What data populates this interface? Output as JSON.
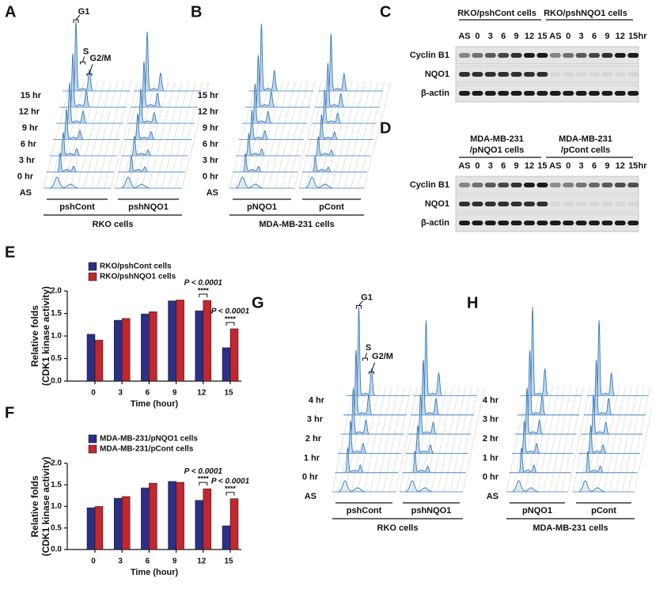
{
  "chart_data": [
    {
      "type": "bar",
      "panel": "E",
      "ylabel": [
        "Relative folds",
        "(CDK1 kinase activity)"
      ],
      "xlabel": "Time (hour)",
      "categories": [
        "0",
        "3",
        "6",
        "9",
        "12",
        "15"
      ],
      "series": [
        {
          "name": "RKO/pshCont cells",
          "color": "#2b2f86",
          "values": [
            1.04,
            1.35,
            1.49,
            1.78,
            1.56,
            0.74
          ]
        },
        {
          "name": "RKO/pshNQO1 cells",
          "color": "#c1272d",
          "values": [
            0.91,
            1.39,
            1.54,
            1.8,
            1.79,
            1.16
          ]
        }
      ],
      "ylim": [
        0,
        2
      ],
      "yticks": [
        {
          "value": 0,
          "label": "0.0"
        },
        0.5,
        {
          "value": 1,
          "label": "1.0"
        },
        1.5,
        {
          "value": 2,
          "label": "2.0"
        }
      ],
      "annotations": [
        {
          "p": "P < 0.0001",
          "stars": "****"
        },
        {
          "p": "P < 0.0001",
          "stars": "****"
        }
      ]
    },
    {
      "type": "bar",
      "panel": "F",
      "ylabel": [
        "Relative folds",
        "(CDK1 kinase activity)"
      ],
      "xlabel": "Time (hour)",
      "categories": [
        "0",
        "3",
        "6",
        "9",
        "12",
        "15"
      ],
      "series": [
        {
          "name": "MDA-MB-231/pNQO1 cells",
          "color": "#2b2f86",
          "values": [
            0.97,
            1.19,
            1.43,
            1.58,
            1.14,
            0.55
          ]
        },
        {
          "name": "MDA-MB-231/pCont cells",
          "color": "#c1272d",
          "values": [
            1.0,
            1.23,
            1.54,
            1.56,
            1.41,
            1.18
          ]
        }
      ],
      "ylim": [
        0,
        2
      ],
      "yticks": [
        {
          "value": 0,
          "label": "0.0"
        },
        0.5,
        {
          "value": 1,
          "label": "1.0"
        },
        1.5,
        {
          "value": 2,
          "label": "2.0"
        }
      ],
      "annotations": [
        {
          "p": "P < 0.0001",
          "stars": "****"
        },
        {
          "p": "P < 0.0001",
          "stars": "****"
        }
      ]
    }
  ],
  "panels": {
    "A": {
      "letter": "A",
      "peaks": [
        "G1",
        "S",
        "G2/M"
      ],
      "times": [
        "AS",
        "0 hr",
        "3 hr",
        "6 hr",
        "9 hr",
        "12 hr",
        "15 hr"
      ],
      "groups": [
        "pshCont",
        "pshNQO1"
      ],
      "cells": "RKO cells"
    },
    "B": {
      "letter": "B",
      "times": [
        "AS",
        "0 hr",
        "3 hr",
        "6 hr",
        "9 hr",
        "12 hr",
        "15 hr"
      ],
      "groups": [
        "pNQO1",
        "pCont"
      ],
      "cells": "MDA-MB-231 cells"
    },
    "C": {
      "letter": "C",
      "groups": [
        "RKO/pshCont cells",
        "RKO/pshNQO1 cells"
      ],
      "lanes": [
        "AS",
        "0",
        "3",
        "6",
        "9",
        "12",
        "15",
        "AS",
        "0",
        "3",
        "6",
        "9",
        "12",
        "15"
      ],
      "unit": "hr",
      "rows": [
        "Cyclin B1",
        "NQO1",
        "β-actin"
      ]
    },
    "D": {
      "letter": "D",
      "groups": [
        [
          "MDA-MB-231",
          "/pNQO1 cells"
        ],
        [
          "MDA-MB-231",
          "/pCont cells"
        ]
      ],
      "lanes": [
        "AS",
        "0",
        "3",
        "6",
        "9",
        "12",
        "15",
        "AS",
        "0",
        "3",
        "6",
        "9",
        "12",
        "15"
      ],
      "unit": "hr",
      "rows": [
        "Cyclin B1",
        "NQO1",
        "β-actin"
      ]
    },
    "G": {
      "letter": "G",
      "peaks": [
        "G1",
        "S",
        "G2/M"
      ],
      "times": [
        "AS",
        "0 hr",
        "1 hr",
        "2 hr",
        "3 hr",
        "4 hr"
      ],
      "groups": [
        "pshCont",
        "pshNQO1"
      ],
      "cells": "RKO cells"
    },
    "H": {
      "letter": "H",
      "times": [
        "AS",
        "0 hr",
        "1 hr",
        "2 hr",
        "3 hr",
        "4 hr"
      ],
      "groups": [
        "pNQO1",
        "pCont"
      ],
      "cells": "MDA-MB-231 cells"
    }
  }
}
